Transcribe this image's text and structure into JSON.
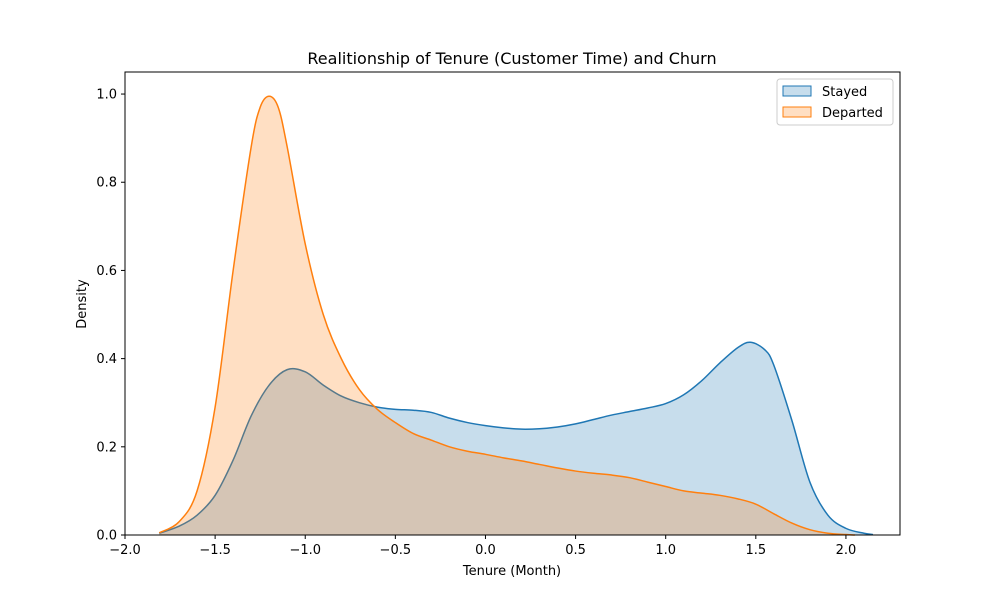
{
  "chart_data": {
    "type": "area",
    "title": "Realitionship of Tenure (Customer Time) and Churn",
    "xlabel": "Tenure (Month)",
    "ylabel": "Density",
    "xlim": [
      -2.0,
      2.3
    ],
    "ylim": [
      0.0,
      1.05
    ],
    "xticks": [
      "−2.0",
      "−1.5",
      "−1.0",
      "−0.5",
      "0.0",
      "0.5",
      "1.0",
      "1.5",
      "2.0"
    ],
    "xtick_values": [
      -2.0,
      -1.5,
      -1.0,
      -0.5,
      0.0,
      0.5,
      1.0,
      1.5,
      2.0
    ],
    "yticks": [
      "0.0",
      "0.2",
      "0.4",
      "0.6",
      "0.8",
      "1.0"
    ],
    "ytick_values": [
      0.0,
      0.2,
      0.4,
      0.6,
      0.8,
      1.0
    ],
    "grid": false,
    "legend_position": "top-right",
    "series": [
      {
        "name": "Stayed",
        "color": "#1f77b4",
        "x": [
          -1.81,
          -1.7,
          -1.6,
          -1.5,
          -1.4,
          -1.3,
          -1.2,
          -1.1,
          -1.0,
          -0.9,
          -0.8,
          -0.7,
          -0.6,
          -0.5,
          -0.4,
          -0.3,
          -0.2,
          -0.1,
          0.0,
          0.1,
          0.2,
          0.3,
          0.4,
          0.5,
          0.6,
          0.7,
          0.8,
          0.9,
          1.0,
          1.1,
          1.2,
          1.3,
          1.4,
          1.47,
          1.55,
          1.6,
          1.7,
          1.8,
          1.9,
          2.0,
          2.1,
          2.15
        ],
        "y": [
          0.004,
          0.02,
          0.045,
          0.09,
          0.17,
          0.27,
          0.34,
          0.375,
          0.37,
          0.34,
          0.315,
          0.3,
          0.29,
          0.285,
          0.283,
          0.278,
          0.265,
          0.255,
          0.248,
          0.243,
          0.24,
          0.241,
          0.245,
          0.252,
          0.262,
          0.272,
          0.28,
          0.288,
          0.298,
          0.318,
          0.35,
          0.39,
          0.425,
          0.437,
          0.42,
          0.385,
          0.26,
          0.12,
          0.045,
          0.015,
          0.004,
          0.001
        ]
      },
      {
        "name": "Departed",
        "color": "#ff7f0e",
        "x": [
          -1.81,
          -1.7,
          -1.6,
          -1.5,
          -1.4,
          -1.3,
          -1.25,
          -1.2,
          -1.15,
          -1.1,
          -1.0,
          -0.9,
          -0.8,
          -0.7,
          -0.6,
          -0.5,
          -0.4,
          -0.3,
          -0.2,
          -0.1,
          0.0,
          0.1,
          0.2,
          0.3,
          0.4,
          0.5,
          0.6,
          0.7,
          0.8,
          0.9,
          1.0,
          1.1,
          1.2,
          1.3,
          1.4,
          1.5,
          1.6,
          1.7,
          1.8,
          1.9,
          2.0,
          2.05
        ],
        "y": [
          0.005,
          0.03,
          0.1,
          0.29,
          0.6,
          0.88,
          0.97,
          0.995,
          0.97,
          0.88,
          0.66,
          0.5,
          0.4,
          0.33,
          0.285,
          0.255,
          0.23,
          0.215,
          0.2,
          0.19,
          0.183,
          0.175,
          0.168,
          0.16,
          0.152,
          0.145,
          0.14,
          0.136,
          0.13,
          0.12,
          0.11,
          0.1,
          0.095,
          0.09,
          0.082,
          0.07,
          0.048,
          0.027,
          0.012,
          0.004,
          0.001,
          0.0
        ]
      }
    ]
  }
}
